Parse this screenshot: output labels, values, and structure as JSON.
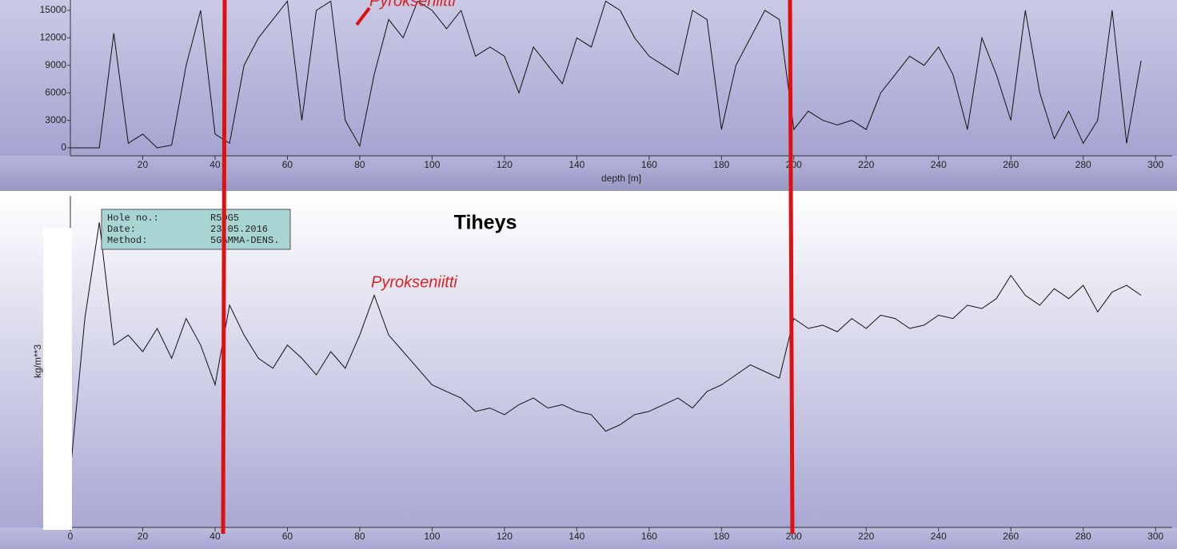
{
  "chart_data": [
    {
      "type": "line",
      "xlabel": "depth [m]",
      "annotation": "Pyrokseniitti",
      "xlim": [
        0,
        304.6
      ],
      "ylim": [
        -870,
        16130
      ],
      "xticks": [
        20,
        40,
        60,
        80,
        100,
        120,
        140,
        160,
        180,
        200,
        220,
        240,
        260,
        280,
        300
      ],
      "yticks": [
        0,
        3000,
        6000,
        9000,
        12000,
        15000
      ],
      "color": "#111111",
      "x": [
        0,
        4,
        8,
        12,
        16,
        20,
        24,
        28,
        32,
        36,
        40,
        44,
        48,
        52,
        56,
        60,
        64,
        68,
        72,
        76,
        80,
        84,
        88,
        92,
        96,
        100,
        104,
        108,
        112,
        116,
        120,
        124,
        128,
        132,
        136,
        140,
        144,
        148,
        152,
        156,
        160,
        164,
        168,
        172,
        176,
        180,
        184,
        188,
        192,
        196,
        200,
        204,
        208,
        212,
        216,
        220,
        224,
        228,
        232,
        236,
        240,
        244,
        248,
        252,
        256,
        260,
        264,
        268,
        272,
        276,
        280,
        284,
        288,
        292,
        296
      ],
      "values": [
        0,
        0,
        0,
        12500,
        500,
        1500,
        0,
        300,
        9000,
        15000,
        1500,
        500,
        9000,
        12000,
        14000,
        16000,
        3000,
        15000,
        16000,
        3000,
        200,
        8000,
        14000,
        12000,
        16000,
        15000,
        13000,
        15000,
        10000,
        11000,
        10000,
        6000,
        11000,
        9000,
        7000,
        12000,
        11000,
        16000,
        15000,
        12000,
        10000,
        9000,
        8000,
        15000,
        14000,
        2000,
        9000,
        12000,
        15000,
        14000,
        2000,
        4000,
        3000,
        2500,
        3000,
        2000,
        6000,
        8000,
        10000,
        9000,
        11000,
        8000,
        2000,
        12000,
        8000,
        3000,
        15000,
        6000,
        1000,
        4000,
        500,
        3000,
        15000,
        500,
        9500
      ]
    },
    {
      "type": "line",
      "title": "Tiheys",
      "ylabel": "kg/m**3",
      "annotation": "Pyrokseniitti",
      "info": [
        {
          "label": "Hole no.:",
          "value": "R50G5"
        },
        {
          "label": "Date:",
          "value": "23.05.2016"
        },
        {
          "label": "Method:",
          "value": "5GAMMA-DENS."
        }
      ],
      "xlim": [
        0,
        304.6
      ],
      "ylim": [
        0,
        100
      ],
      "xticks": [
        0,
        20,
        40,
        60,
        80,
        100,
        120,
        140,
        160,
        180,
        200,
        220,
        240,
        260,
        280,
        300
      ],
      "color": "#111111",
      "x": [
        0,
        4,
        8,
        12,
        16,
        20,
        24,
        28,
        32,
        36,
        40,
        44,
        48,
        52,
        56,
        60,
        64,
        68,
        72,
        76,
        80,
        84,
        88,
        92,
        96,
        100,
        104,
        108,
        112,
        116,
        120,
        124,
        128,
        132,
        136,
        140,
        144,
        148,
        152,
        156,
        160,
        164,
        168,
        172,
        176,
        180,
        184,
        188,
        192,
        196,
        200,
        204,
        208,
        212,
        216,
        220,
        224,
        228,
        232,
        236,
        240,
        244,
        248,
        252,
        256,
        260,
        264,
        268,
        272,
        276,
        280,
        284,
        288,
        292,
        296
      ],
      "values": [
        17,
        63,
        92,
        55,
        58,
        53,
        60,
        51,
        63,
        55,
        43,
        67,
        58,
        51,
        48,
        55,
        51,
        46,
        53,
        48,
        58,
        70,
        58,
        53,
        48,
        43,
        41,
        39,
        35,
        36,
        34,
        37,
        39,
        36,
        37,
        35,
        34,
        29,
        31,
        34,
        35,
        37,
        39,
        36,
        41,
        43,
        46,
        49,
        47,
        45,
        63,
        60,
        61,
        59,
        63,
        60,
        64,
        63,
        60,
        61,
        64,
        63,
        67,
        66,
        69,
        76,
        70,
        67,
        72,
        69,
        73,
        65,
        71,
        73,
        70
      ]
    }
  ]
}
